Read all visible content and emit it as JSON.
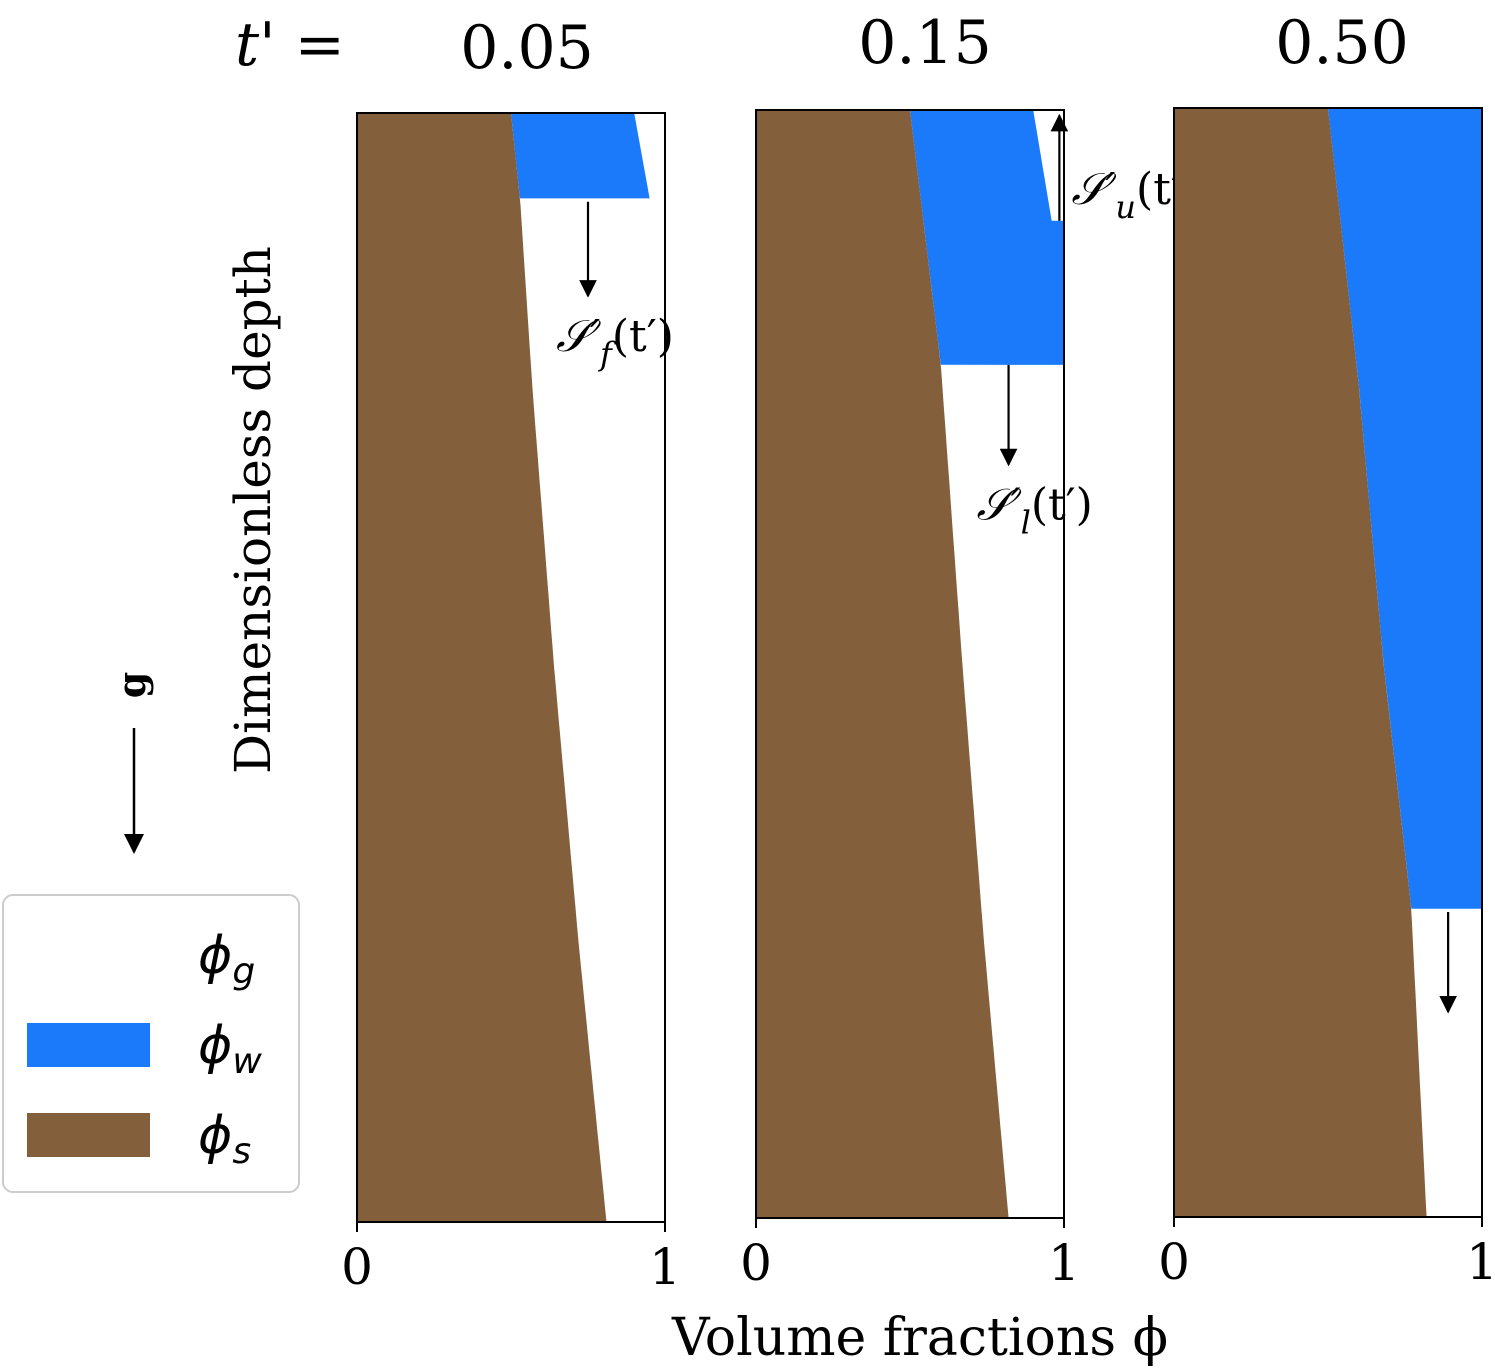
{
  "figure": {
    "time_label": "t' =",
    "ylabel": "Dimensionless depth",
    "xlabel": "Volume fractions ϕ",
    "gravity_label": "g"
  },
  "legend": {
    "placement": "lower-left",
    "entries": [
      {
        "key": "gas",
        "symbol": "ϕ",
        "subscript": "g",
        "color": "#ffffff"
      },
      {
        "key": "water",
        "symbol": "ϕ",
        "subscript": "w",
        "color": "#1a7afa"
      },
      {
        "key": "solid",
        "symbol": "ϕ",
        "subscript": "s",
        "color": "#845f3c"
      }
    ]
  },
  "colors": {
    "water": "#1a7afa",
    "solid": "#845f3c",
    "gas": "#ffffff"
  },
  "chart_data": [
    {
      "type": "area",
      "panel_label": "0.05",
      "xlim": [
        0,
        1
      ],
      "xticks": [
        "0",
        "1"
      ],
      "depth_range": [
        0,
        1
      ],
      "solid_fraction": [
        [
          0,
          0.5
        ],
        [
          0.08,
          0.53
        ],
        [
          0.25,
          0.57
        ],
        [
          0.5,
          0.64
        ],
        [
          0.75,
          0.72
        ],
        [
          1,
          0.81
        ]
      ],
      "water_band": {
        "top": 0,
        "bottom": 0.077,
        "right_top": 0.9,
        "right_bottom": 0.95
      },
      "annotations": [
        {
          "symbol": "𝒮′",
          "subscript": "f",
          "arg": "(t′)",
          "arrow": "down",
          "depth_from": 0.08,
          "depth_to": 0.165,
          "x": 0.75
        }
      ]
    },
    {
      "type": "area",
      "panel_label": "0.15",
      "xlim": [
        0,
        1
      ],
      "xticks": [
        "0",
        "1"
      ],
      "depth_range": [
        0,
        1
      ],
      "solid_fraction": [
        [
          0,
          0.5
        ],
        [
          0.23,
          0.6
        ],
        [
          0.5,
          0.67
        ],
        [
          0.75,
          0.74
        ],
        [
          1,
          0.82
        ]
      ],
      "water_band": {
        "top": 0,
        "bottom": 0.23,
        "right_top": 0.9,
        "right_upper_break": 0.1,
        "right_upper_value": 0.96
      },
      "annotations": [
        {
          "symbol": "𝒮′",
          "subscript": "u",
          "arg": "(t′)",
          "arrow": "up",
          "depth_from": 0.1,
          "depth_to": 0.005,
          "x": 0.985
        },
        {
          "symbol": "𝒮′",
          "subscript": "l",
          "arg": "(t′)",
          "arrow": "down",
          "depth_from": 0.23,
          "depth_to": 0.32,
          "x": 0.82
        }
      ]
    },
    {
      "type": "area",
      "panel_label": "0.50",
      "xlim": [
        0,
        1
      ],
      "xticks": [
        "0",
        "1"
      ],
      "depth_range": [
        0,
        1
      ],
      "solid_fraction": [
        [
          0,
          0.5
        ],
        [
          0.25,
          0.6
        ],
        [
          0.5,
          0.68
        ],
        [
          0.72,
          0.77
        ],
        [
          1,
          0.82
        ]
      ],
      "water_band": {
        "top": 0,
        "bottom": 0.722,
        "right_top": 1.0,
        "right_bottom": 1.0
      },
      "annotations": [
        {
          "symbol": "",
          "subscript": "",
          "arg": "",
          "arrow": "down",
          "depth_from": 0.725,
          "depth_to": 0.815,
          "x": 0.89
        }
      ]
    }
  ]
}
